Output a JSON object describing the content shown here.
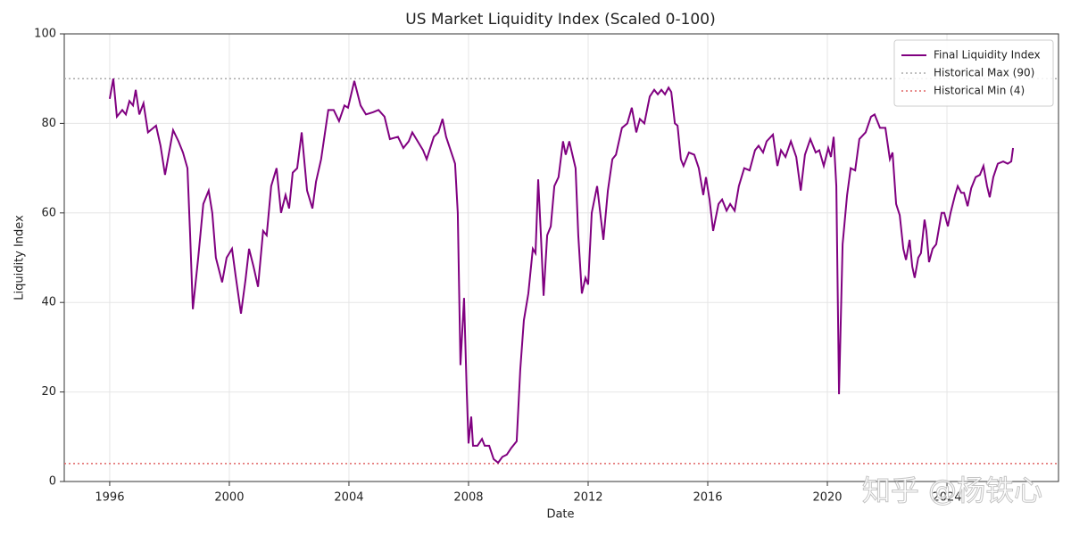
{
  "chart_data": {
    "type": "line",
    "title": "US Market Liquidity Index (Scaled 0-100)",
    "x_label": "Date",
    "y_label": "Liquidity Index",
    "x": [
      1996.0,
      1996.12,
      1996.24,
      1996.42,
      1996.54,
      1996.66,
      1996.78,
      1996.87,
      1996.99,
      1997.13,
      1997.28,
      1997.55,
      1997.7,
      1997.85,
      1998.12,
      1998.3,
      1998.45,
      1998.6,
      1998.69,
      1998.78,
      1998.96,
      1999.13,
      1999.31,
      1999.43,
      1999.55,
      1999.76,
      1999.91,
      2000.09,
      2000.21,
      2000.39,
      2000.54,
      2000.66,
      2000.81,
      2000.96,
      2001.13,
      2001.25,
      2001.4,
      2001.58,
      2001.73,
      2001.88,
      2002.0,
      2002.12,
      2002.27,
      2002.42,
      2002.6,
      2002.78,
      2002.9,
      2003.07,
      2003.31,
      2003.49,
      2003.67,
      2003.85,
      2003.97,
      2004.18,
      2004.39,
      2004.57,
      2004.81,
      2004.99,
      2005.19,
      2005.37,
      2005.64,
      2005.82,
      2006.0,
      2006.12,
      2006.3,
      2006.48,
      2006.6,
      2006.84,
      2006.99,
      2007.13,
      2007.25,
      2007.4,
      2007.55,
      2007.64,
      2007.73,
      2007.85,
      2007.94,
      2008.0,
      2008.09,
      2008.15,
      2008.3,
      2008.45,
      2008.54,
      2008.69,
      2008.84,
      2008.99,
      2009.13,
      2009.28,
      2009.43,
      2009.61,
      2009.73,
      2009.85,
      2010.0,
      2010.15,
      2010.24,
      2010.33,
      2010.42,
      2010.51,
      2010.63,
      2010.75,
      2010.87,
      2011.01,
      2011.16,
      2011.25,
      2011.37,
      2011.58,
      2011.67,
      2011.79,
      2011.91,
      2012.0,
      2012.12,
      2012.3,
      2012.51,
      2012.66,
      2012.81,
      2012.93,
      2013.13,
      2013.31,
      2013.46,
      2013.61,
      2013.73,
      2013.88,
      2014.06,
      2014.21,
      2014.33,
      2014.45,
      2014.57,
      2014.69,
      2014.78,
      2014.9,
      2014.99,
      2015.1,
      2015.19,
      2015.37,
      2015.55,
      2015.7,
      2015.85,
      2015.94,
      2016.06,
      2016.18,
      2016.36,
      2016.48,
      2016.63,
      2016.75,
      2016.9,
      2017.04,
      2017.22,
      2017.4,
      2017.58,
      2017.7,
      2017.85,
      2017.97,
      2018.18,
      2018.33,
      2018.45,
      2018.6,
      2018.78,
      2018.96,
      2019.11,
      2019.25,
      2019.43,
      2019.61,
      2019.73,
      2019.88,
      2020.03,
      2020.12,
      2020.21,
      2020.3,
      2020.39,
      2020.51,
      2020.66,
      2020.78,
      2020.93,
      2021.07,
      2021.28,
      2021.46,
      2021.58,
      2021.76,
      2021.94,
      2022.09,
      2022.18,
      2022.3,
      2022.42,
      2022.54,
      2022.63,
      2022.75,
      2022.84,
      2022.92,
      2023.04,
      2023.13,
      2023.25,
      2023.31,
      2023.4,
      2023.52,
      2023.64,
      2023.82,
      2023.91,
      2024.03,
      2024.12,
      2024.27,
      2024.36,
      2024.48,
      2024.57,
      2024.69,
      2024.81,
      2024.96,
      2025.1,
      2025.22,
      2025.34,
      2025.43,
      2025.55,
      2025.7,
      2025.88,
      2026.03,
      2026.15,
      2026.21
    ],
    "series": [
      {
        "name": "Final Liquidity Index",
        "color": "#800080",
        "values": [
          85.5,
          90,
          81.5,
          83,
          82,
          85,
          84,
          87.5,
          82,
          84.5,
          78,
          79.5,
          75,
          68.5,
          78.5,
          76,
          73.5,
          70,
          55,
          38.5,
          50,
          62,
          65,
          60,
          50,
          44.5,
          50,
          52,
          46,
          37.5,
          45,
          52,
          48,
          43.5,
          56,
          55,
          66,
          70,
          60,
          64,
          61,
          69,
          70,
          78,
          65,
          61,
          67,
          72,
          83,
          83,
          80.5,
          84,
          83.5,
          89.5,
          84,
          82,
          82.5,
          83,
          81.5,
          76.5,
          77,
          74.5,
          76,
          78,
          76,
          74,
          72,
          77,
          78,
          81,
          77,
          74,
          71,
          60,
          26,
          41,
          20,
          8.5,
          14.5,
          8,
          8,
          9.5,
          8,
          8,
          5,
          4.2,
          5.5,
          6,
          7.5,
          9,
          25,
          36,
          42,
          52,
          51,
          67.5,
          55,
          41.5,
          55,
          57,
          66,
          68,
          76,
          73,
          76,
          70,
          55,
          42,
          45.5,
          44,
          60,
          66,
          54,
          65,
          72,
          73,
          79,
          80,
          83.5,
          78,
          81,
          80,
          86,
          87.5,
          86.5,
          87.5,
          86.5,
          88,
          87,
          80,
          79.5,
          72,
          70.5,
          73.5,
          73,
          70,
          64,
          68,
          63,
          56,
          62,
          63,
          60.5,
          62,
          60.5,
          66,
          70,
          69.5,
          74,
          75,
          73.5,
          76,
          77.5,
          70.5,
          74,
          72.5,
          76,
          72.5,
          65,
          73,
          76.5,
          73.5,
          74,
          70.5,
          74.5,
          72.5,
          77,
          66,
          19.5,
          53,
          64,
          70,
          69.5,
          76.5,
          78,
          81.5,
          82,
          79,
          79,
          72,
          73.5,
          62,
          59.5,
          52,
          49.5,
          54,
          48,
          45.5,
          50,
          51,
          58.5,
          56,
          49,
          52,
          53,
          60,
          60,
          57,
          60,
          64,
          66,
          64.5,
          64.5,
          61.5,
          65.5,
          68,
          68.5,
          70.5,
          66,
          63.5,
          68,
          71,
          71.5,
          71,
          71.5,
          74.5
        ]
      }
    ],
    "reference_lines": [
      {
        "name": "Historical Max (90)",
        "value": 90,
        "color": "#aaaaaa"
      },
      {
        "name": "Historical Min (4)",
        "value": 4,
        "color": "#e06666"
      }
    ],
    "xlim": [
      1994.48,
      2027.73
    ],
    "xticks": [
      1996,
      2000,
      2004,
      2008,
      2012,
      2016,
      2020,
      2024
    ],
    "ylim": [
      0,
      100
    ],
    "yticks": [
      0,
      20,
      40,
      60,
      80,
      100
    ],
    "grid": true,
    "legend": "upper right",
    "watermark": "知乎 @杨铁心"
  }
}
